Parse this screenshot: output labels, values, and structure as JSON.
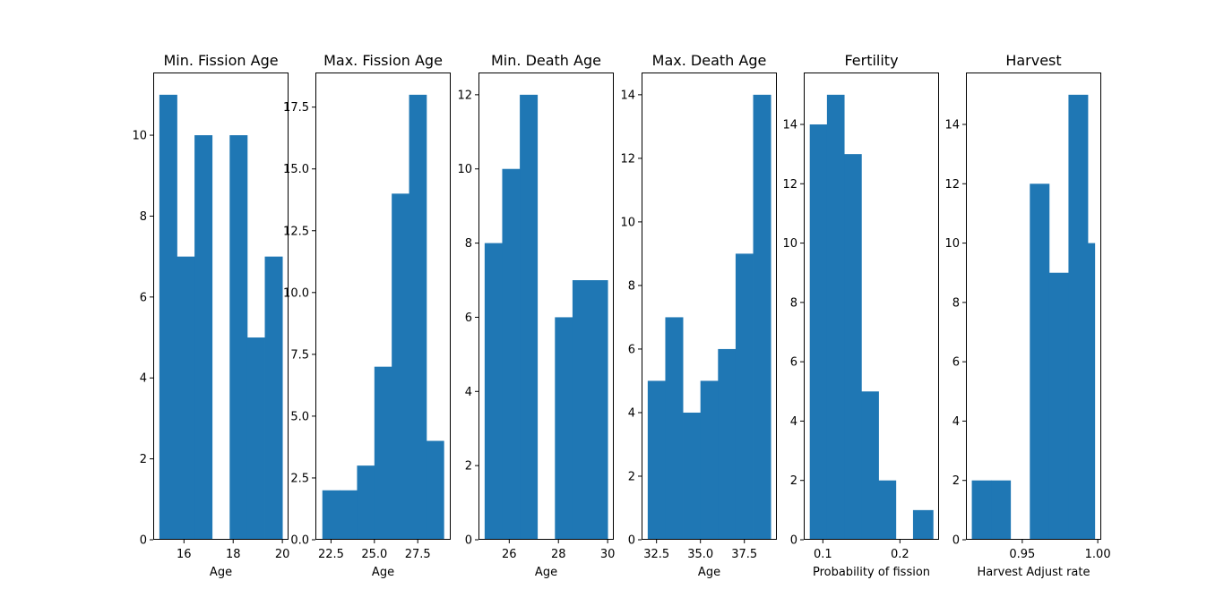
{
  "colors": {
    "bar": "#1f77b4",
    "axes": "#000000",
    "background": "#ffffff"
  },
  "chart_data": [
    {
      "type": "bar",
      "title": "Min. Fission Age",
      "xlabel": "Age",
      "xlim": [
        14.75,
        20.25
      ],
      "ylim": [
        0,
        11.55
      ],
      "bin_edges": [
        15.0,
        15.714,
        16.429,
        17.143,
        17.857,
        18.571,
        19.286,
        20.0
      ],
      "values": [
        11,
        7,
        10,
        0,
        10,
        5,
        7
      ],
      "xticks": [
        16,
        18,
        20
      ],
      "xtick_labels": [
        "16",
        "18",
        "20"
      ],
      "yticks": [
        0,
        2,
        4,
        6,
        8,
        10
      ],
      "ytick_labels": [
        "0",
        "2",
        "4",
        "6",
        "8",
        "10"
      ]
    },
    {
      "type": "bar",
      "title": "Max. Fission Age",
      "xlabel": "Age",
      "xlim": [
        21.6,
        29.4
      ],
      "ylim": [
        0,
        18.9
      ],
      "bin_edges": [
        22.0,
        23.0,
        24.0,
        25.0,
        26.0,
        27.0,
        28.0,
        29.0
      ],
      "values": [
        2,
        2,
        3,
        7,
        14,
        18,
        4
      ],
      "xticks": [
        22.5,
        25.0,
        27.5
      ],
      "xtick_labels": [
        "22.5",
        "25.0",
        "27.5"
      ],
      "yticks": [
        0,
        2.5,
        5,
        7.5,
        10,
        12.5,
        15,
        17.5
      ],
      "ytick_labels": [
        "0.0",
        "2.5",
        "5.0",
        "7.5",
        "10.0",
        "12.5",
        "15.0",
        "17.5"
      ]
    },
    {
      "type": "bar",
      "title": "Min. Death Age",
      "xlabel": "Age",
      "xlim": [
        24.75,
        30.25
      ],
      "ylim": [
        0,
        12.6
      ],
      "bin_edges": [
        25.0,
        25.714,
        26.429,
        27.143,
        27.857,
        28.571,
        29.286,
        30.0
      ],
      "values": [
        8,
        10,
        12,
        0,
        6,
        7,
        7
      ],
      "xticks": [
        26,
        28,
        30
      ],
      "xtick_labels": [
        "26",
        "28",
        "30"
      ],
      "yticks": [
        0,
        2,
        4,
        6,
        8,
        10,
        12
      ],
      "ytick_labels": [
        "0",
        "2",
        "4",
        "6",
        "8",
        "10",
        "12"
      ]
    },
    {
      "type": "bar",
      "title": "Max. Death Age",
      "xlabel": "Age",
      "xlim": [
        31.65,
        39.35
      ],
      "ylim": [
        0,
        14.7
      ],
      "bin_edges": [
        32.0,
        33.0,
        34.0,
        35.0,
        36.0,
        37.0,
        38.0,
        39.0
      ],
      "values": [
        5,
        7,
        4,
        5,
        6,
        9,
        14
      ],
      "xticks": [
        32.5,
        35.0,
        37.5
      ],
      "xtick_labels": [
        "32.5",
        "35.0",
        "37.5"
      ],
      "yticks": [
        0,
        2,
        4,
        6,
        8,
        10,
        12,
        14
      ],
      "ytick_labels": [
        "0",
        "2",
        "4",
        "6",
        "8",
        "10",
        "12",
        "14"
      ]
    },
    {
      "type": "bar",
      "title": "Fertility",
      "xlabel": "Probability of fission",
      "xlim": [
        0.0752,
        0.2508
      ],
      "ylim": [
        0,
        15.75
      ],
      "bin_edges": [
        0.083,
        0.1053,
        0.1277,
        0.15,
        0.1723,
        0.1947,
        0.217,
        0.243
      ],
      "values": [
        14,
        15,
        13,
        5,
        2,
        0,
        1
      ],
      "xticks": [
        0.1,
        0.2
      ],
      "xtick_labels": [
        "0.1",
        "0.2"
      ],
      "yticks": [
        0,
        2,
        4,
        6,
        8,
        10,
        12,
        14
      ],
      "ytick_labels": [
        "0",
        "2",
        "4",
        "6",
        "8",
        "10",
        "12",
        "14"
      ]
    },
    {
      "type": "bar",
      "title": "Harvest",
      "xlabel": "Harvest Adjust rate",
      "xlim": [
        0.9127,
        1.0023
      ],
      "ylim": [
        0,
        15.75
      ],
      "bin_edges": [
        0.9166,
        0.9294,
        0.9422,
        0.955,
        0.9678,
        0.9806,
        0.9934,
        0.998
      ],
      "values": [
        2,
        2,
        0,
        12,
        9,
        15,
        10
      ],
      "xticks": [
        0.95,
        1.0
      ],
      "xtick_labels": [
        "0.95",
        "1.00"
      ],
      "yticks": [
        0,
        2,
        4,
        6,
        8,
        10,
        12,
        14
      ],
      "ytick_labels": [
        "0",
        "2",
        "4",
        "6",
        "8",
        "10",
        "12",
        "14"
      ]
    }
  ]
}
